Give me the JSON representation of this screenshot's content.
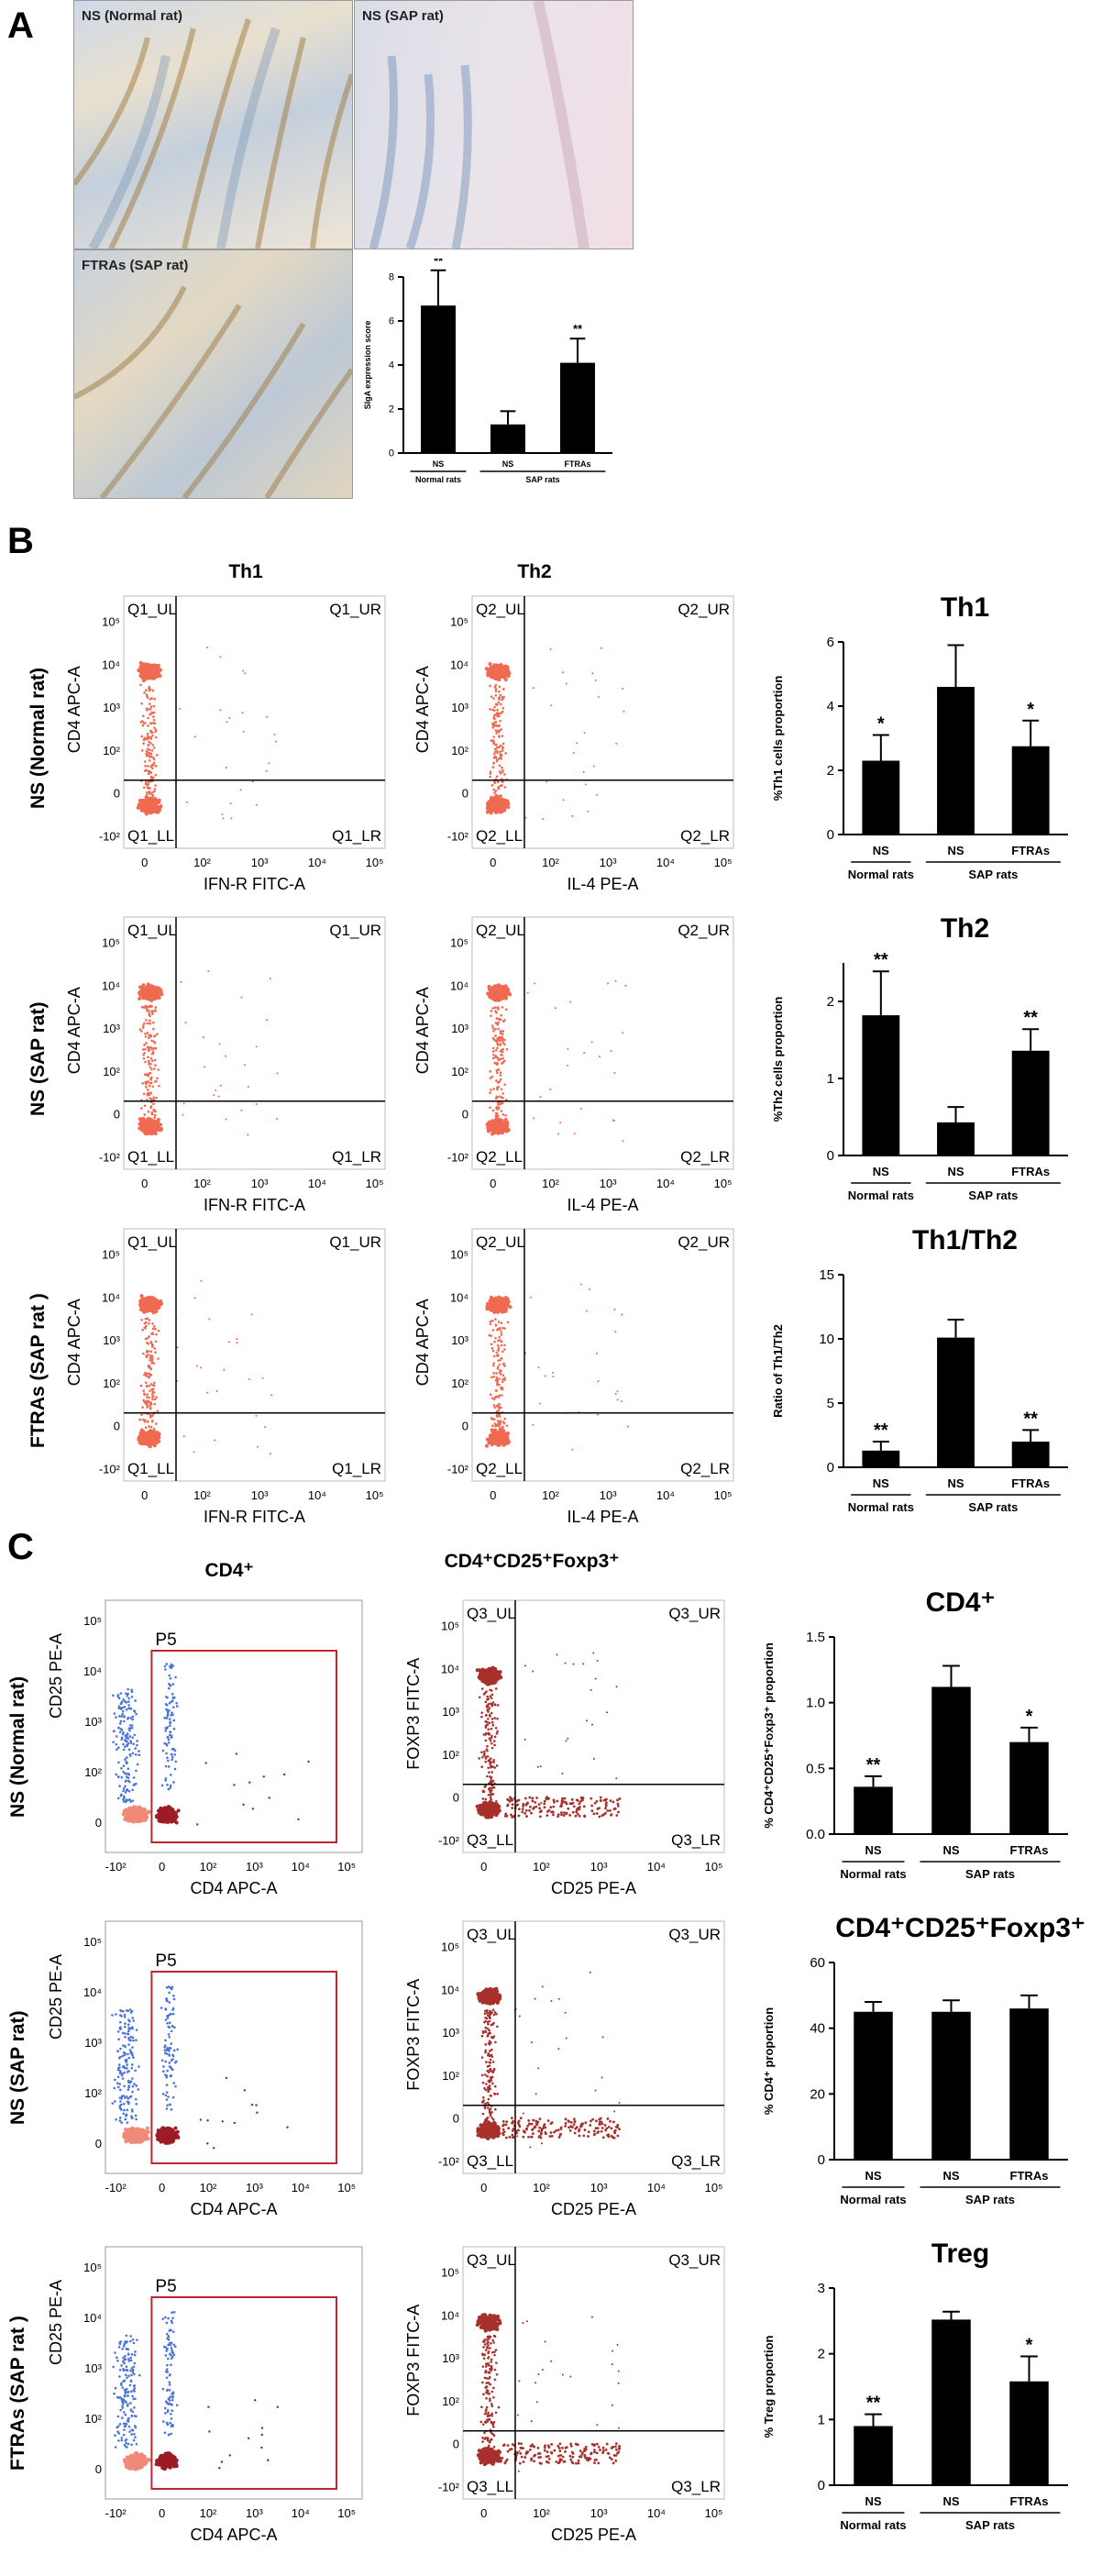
{
  "panelA": {
    "letter": "A",
    "histology": [
      {
        "label": "NS (Normal rat)"
      },
      {
        "label": "NS (SAP rat)"
      },
      {
        "label": "FTRAs (SAP rat)"
      }
    ]
  },
  "panelB": {
    "letter": "B",
    "col_th1": "Th1",
    "col_th2": "Th2",
    "rows": [
      {
        "label": "NS (Normal rat)"
      },
      {
        "label": "NS (SAP  rat)"
      },
      {
        "label": "FTRAs (SAP rat )"
      }
    ],
    "th1_flow": {
      "xlabel": "IFN-R FITC-A",
      "ylabel": "CD4 APC-A",
      "ul": "Q1_UL",
      "ur": "Q1_UR",
      "ll": "Q1_LL",
      "lr": "Q1_LR"
    },
    "th2_flow": {
      "xlabel": "IL-4 PE-A",
      "ylabel": "CD4 APC-A",
      "ul": "Q2_UL",
      "ur": "Q2_UR",
      "ll": "Q2_LL",
      "lr": "Q2_LR"
    }
  },
  "panelC": {
    "letter": "C",
    "col_cd4": "CD4⁺",
    "col_treg": "CD4⁺CD25⁺Foxp3⁺",
    "rows": [
      {
        "label": "NS (Normal rat)"
      },
      {
        "label": "NS (SAP  rat)"
      },
      {
        "label": "FTRAs (SAP rat )"
      }
    ],
    "cd4_flow": {
      "xlabel": "CD4 APC-A",
      "ylabel": "CD25 PE-A",
      "gate": "P5"
    },
    "treg_flow": {
      "xlabel": "CD25 PE-A",
      "ylabel": "FOXP3 FITC-A",
      "ul": "Q3_UL",
      "ur": "Q3_UR",
      "ll": "Q3_LL",
      "lr": "Q3_LR"
    }
  },
  "flow_ticks": {
    "x": [
      "0",
      "10²",
      "10³",
      "10⁴",
      "10⁵"
    ],
    "y": [
      "-10²",
      "0",
      "10²",
      "10³",
      "10⁴",
      "10⁵"
    ],
    "x_c1": [
      "-10²",
      "0",
      "10²",
      "10³",
      "10⁴",
      "10⁵"
    ]
  },
  "chart_data": [
    {
      "type": "bar",
      "title": "",
      "ylabel": "SIgA expression score",
      "ylim": [
        0,
        8
      ],
      "yticks": [
        "0",
        "2",
        "4",
        "6",
        "8"
      ],
      "categories": [
        "NS",
        "NS",
        "FTRAs"
      ],
      "groups": [
        "Normal rats",
        "SAP rats"
      ],
      "values": [
        6.7,
        1.3,
        4.1
      ],
      "errors": [
        1.6,
        0.6,
        1.1
      ],
      "sig": [
        "**",
        "",
        "**"
      ]
    },
    {
      "type": "bar",
      "title": "Th1",
      "ylabel": "%Th1 cells  proportion",
      "ylim": [
        0,
        6
      ],
      "yticks": [
        "0",
        "2",
        "4",
        "6"
      ],
      "categories": [
        "NS",
        "NS",
        "FTRAs"
      ],
      "groups": [
        "Normal rats",
        "SAP rats"
      ],
      "values": [
        2.3,
        4.6,
        2.75
      ],
      "errors": [
        0.8,
        1.3,
        0.8
      ],
      "sig": [
        "*",
        "",
        "*"
      ]
    },
    {
      "type": "bar",
      "title": "Th2",
      "ylabel": "%Th2 cells  proportion",
      "ylim": [
        0,
        2.5
      ],
      "yticks": [
        "0",
        "1",
        "2"
      ],
      "categories": [
        "NS",
        "NS",
        "FTRAs"
      ],
      "groups": [
        "Normal rats",
        "SAP rats"
      ],
      "values": [
        1.82,
        0.43,
        1.36
      ],
      "errors": [
        0.57,
        0.2,
        0.28
      ],
      "sig": [
        "**",
        "",
        "**"
      ]
    },
    {
      "type": "bar",
      "title": "Th1/Th2",
      "ylabel": "Ratio of Th1/Th2",
      "ylim": [
        0,
        15
      ],
      "yticks": [
        "0",
        "5",
        "10",
        "15"
      ],
      "categories": [
        "NS",
        "NS",
        "FTRAs"
      ],
      "groups": [
        "Normal rats",
        "SAP rats"
      ],
      "values": [
        1.3,
        10.1,
        2.0
      ],
      "errors": [
        0.7,
        1.4,
        0.9
      ],
      "sig": [
        "**",
        "",
        "**"
      ]
    },
    {
      "type": "bar",
      "title": "CD4⁺",
      "ylabel": "% CD4⁺CD25⁺Foxp3⁺ proportion",
      "ylim": [
        0,
        1.5
      ],
      "yticks": [
        "0.0",
        "0.5",
        "1.0",
        "1.5"
      ],
      "categories": [
        "NS",
        "NS",
        "FTRAs"
      ],
      "groups": [
        "Normal rats",
        "SAP rats"
      ],
      "values": [
        0.36,
        1.12,
        0.7
      ],
      "errors": [
        0.08,
        0.16,
        0.11
      ],
      "sig": [
        "**",
        "",
        "*"
      ]
    },
    {
      "type": "bar",
      "title": "CD4⁺CD25⁺Foxp3⁺",
      "ylabel": "% CD4⁺ proportion",
      "ylim": [
        0,
        60
      ],
      "yticks": [
        "0",
        "20",
        "40",
        "60"
      ],
      "categories": [
        "NS",
        "NS",
        "FTRAs"
      ],
      "groups": [
        "Normal rats",
        "SAP rats"
      ],
      "values": [
        45,
        45,
        46
      ],
      "errors": [
        3,
        3.5,
        4
      ],
      "sig": [
        "",
        "",
        ""
      ]
    },
    {
      "type": "bar",
      "title": "Treg",
      "ylabel": "% Treg proportion",
      "ylim": [
        0,
        3
      ],
      "yticks": [
        "0",
        "1",
        "2",
        "3"
      ],
      "categories": [
        "NS",
        "NS",
        "FTRAs"
      ],
      "groups": [
        "Normal rats",
        "SAP rats"
      ],
      "values": [
        0.9,
        2.52,
        1.58
      ],
      "errors": [
        0.18,
        0.12,
        0.38
      ],
      "sig": [
        "**",
        "",
        "*"
      ]
    }
  ]
}
